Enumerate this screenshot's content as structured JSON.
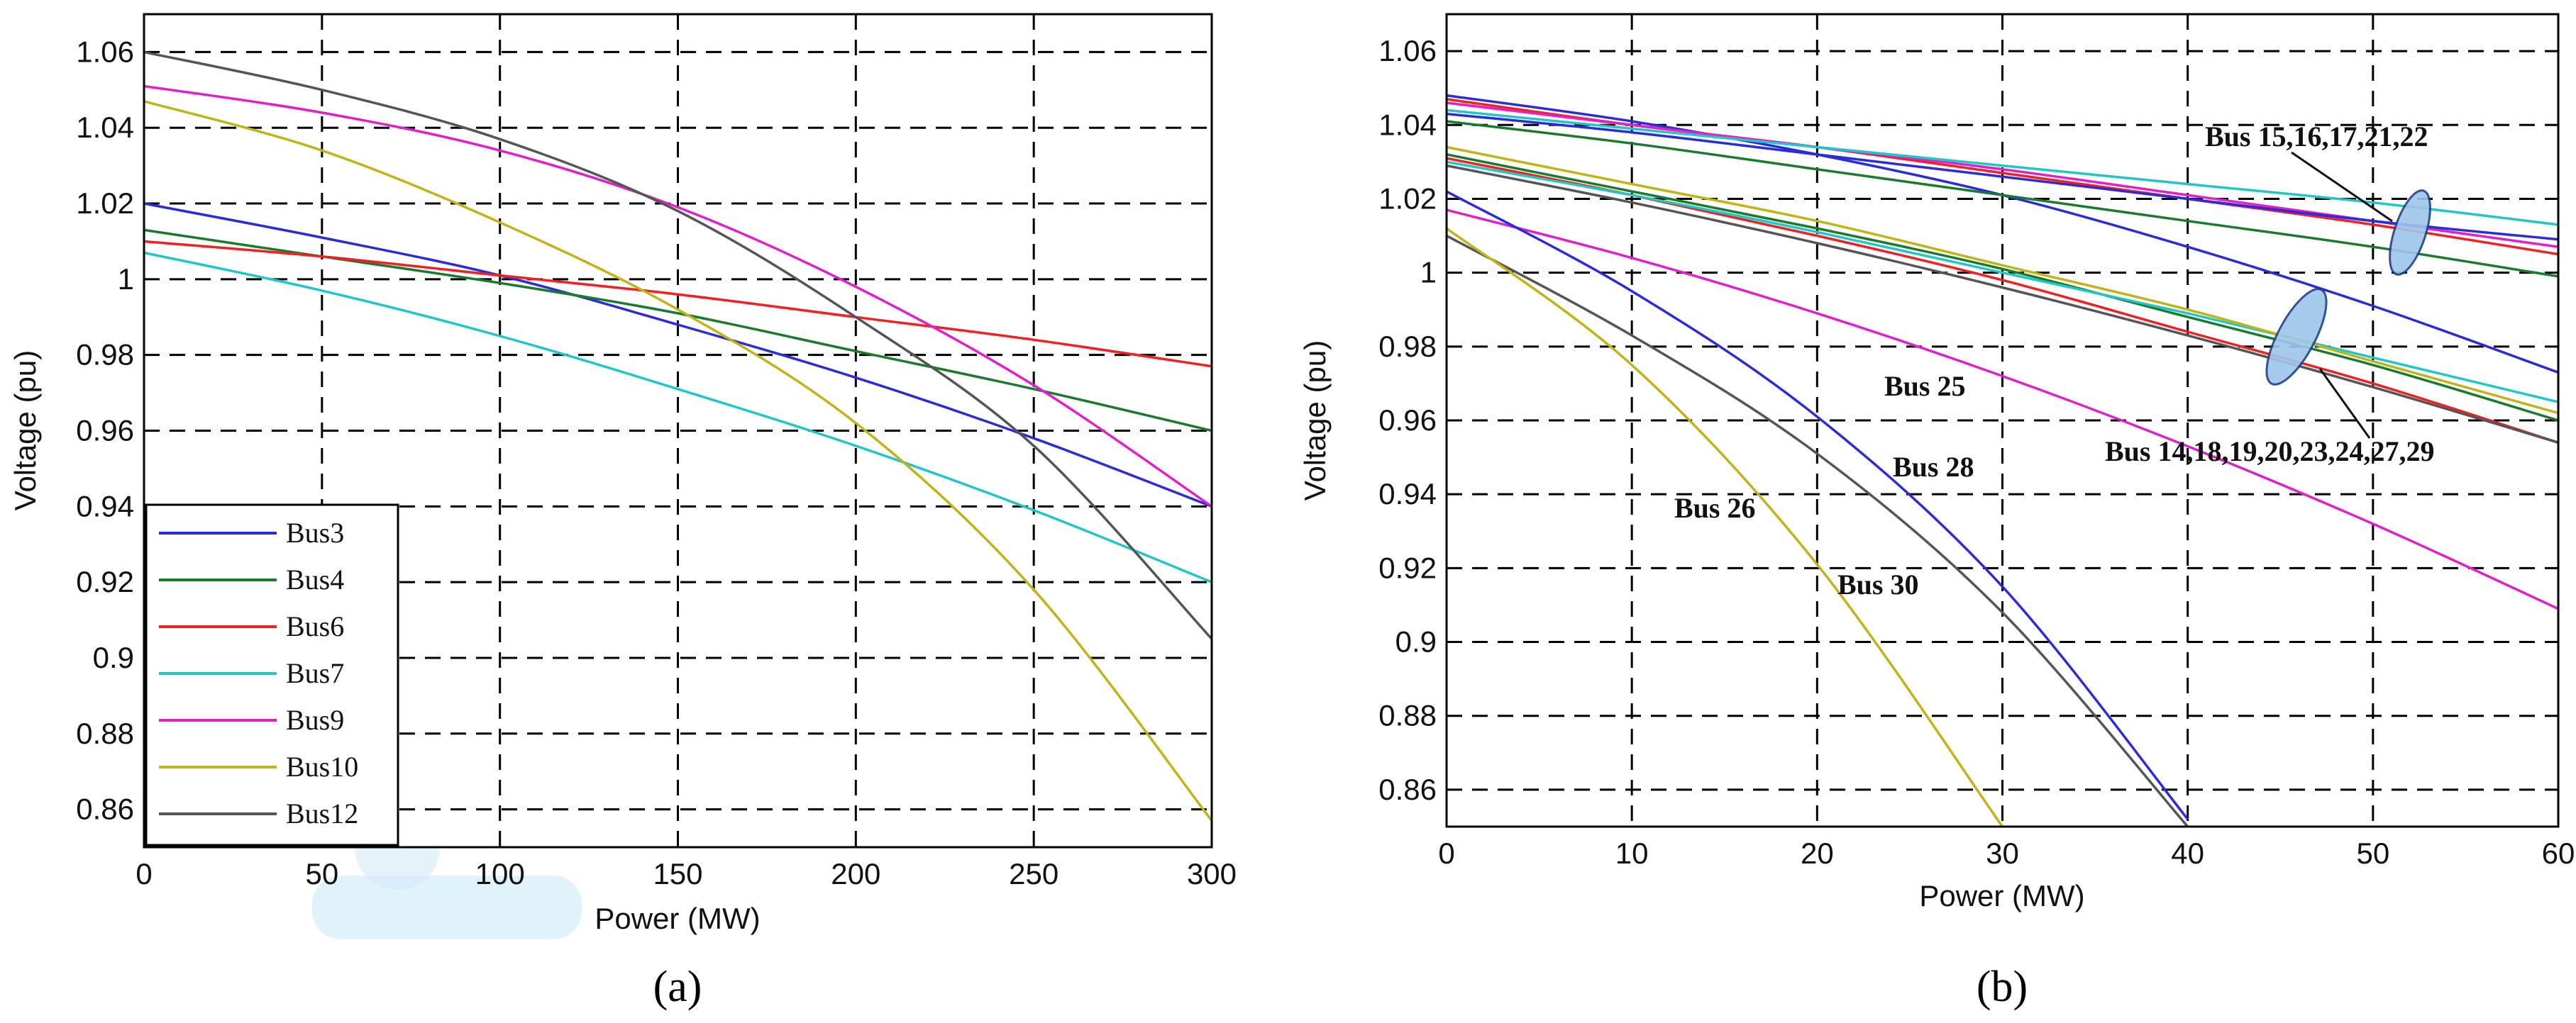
{
  "chart_data": [
    {
      "type": "line",
      "panel_label": "(a)",
      "xlabel": "Power (MW)",
      "ylabel": "Voltage (pu)",
      "xlim": [
        0,
        300
      ],
      "ylim": [
        0.85,
        1.07
      ],
      "xticks": [
        0,
        50,
        100,
        150,
        200,
        250,
        300
      ],
      "yticks": [
        0.86,
        0.88,
        0.9,
        0.92,
        0.94,
        0.96,
        0.98,
        1,
        1.02,
        1.04,
        1.06
      ],
      "ytick_labels": [
        "0.86",
        "0.88",
        "0.9",
        "0.92",
        "0.94",
        "0.96",
        "0.98",
        "1",
        "1.02",
        "1.04",
        "1.06"
      ],
      "grid": true,
      "legend_position": "bottom-left",
      "x": [
        0,
        50,
        100,
        150,
        200,
        250,
        300
      ],
      "series": [
        {
          "name": "Bus3",
          "color": "#2b2bd8",
          "values": [
            1.02,
            1.011,
            1.001,
            0.988,
            0.974,
            0.958,
            0.94
          ]
        },
        {
          "name": "Bus4",
          "color": "#1a7a2e",
          "values": [
            1.013,
            1.006,
            0.999,
            0.991,
            0.981,
            0.971,
            0.96
          ]
        },
        {
          "name": "Bus6",
          "color": "#ee2222",
          "values": [
            1.01,
            1.006,
            1.001,
            0.996,
            0.99,
            0.984,
            0.977
          ]
        },
        {
          "name": "Bus7",
          "color": "#22c6c6",
          "values": [
            1.007,
            0.997,
            0.985,
            0.971,
            0.956,
            0.939,
            0.92
          ]
        },
        {
          "name": "Bus9",
          "color": "#e020c8",
          "values": [
            1.051,
            1.044,
            1.034,
            1.019,
            0.998,
            0.972,
            0.94
          ]
        },
        {
          "name": "Bus10",
          "color": "#c0b418",
          "values": [
            1.047,
            1.034,
            1.015,
            0.992,
            0.962,
            0.918,
            0.857
          ]
        },
        {
          "name": "Bus12",
          "color": "#555555",
          "values": [
            1.06,
            1.05,
            1.037,
            1.018,
            0.99,
            0.956,
            0.905
          ]
        }
      ]
    },
    {
      "type": "line",
      "panel_label": "(b)",
      "xlabel": "Power (MW)",
      "ylabel": "Voltage (pu)",
      "xlim": [
        0,
        60
      ],
      "ylim": [
        0.85,
        1.07
      ],
      "xticks": [
        0,
        10,
        20,
        30,
        40,
        50,
        60
      ],
      "yticks": [
        0.86,
        0.88,
        0.9,
        0.92,
        0.94,
        0.96,
        0.98,
        1,
        1.02,
        1.04,
        1.06
      ],
      "ytick_labels": [
        "0.86",
        "0.88",
        "0.9",
        "0.92",
        "0.94",
        "0.96",
        "0.98",
        "1",
        "1.02",
        "1.04",
        "1.06"
      ],
      "grid": true,
      "annotations": [
        "Bus 15,16,17,21,22",
        "Bus 14,18,19,20,23,24,27,29",
        "Bus 25",
        "Bus 28",
        "Bus 26",
        "Bus 30"
      ],
      "series": [
        {
          "color": "#2b2bd8",
          "x": [
            0,
            10,
            20,
            30,
            40,
            50,
            60
          ],
          "values": [
            1.048,
            1.041,
            1.032,
            1.021,
            1.007,
            0.991,
            0.973
          ]
        },
        {
          "color": "#ee2222",
          "x": [
            0,
            10,
            20,
            30,
            40,
            50,
            60
          ],
          "values": [
            1.047,
            1.04,
            1.034,
            1.027,
            1.02,
            1.013,
            1.005
          ]
        },
        {
          "color": "#e020c8",
          "x": [
            0,
            10,
            20,
            30,
            40,
            50,
            60
          ],
          "values": [
            1.046,
            1.04,
            1.034,
            1.028,
            1.021,
            1.014,
            1.007
          ]
        },
        {
          "color": "#22c6c6",
          "x": [
            0,
            10,
            20,
            30,
            40,
            50,
            60
          ],
          "values": [
            1.044,
            1.039,
            1.034,
            1.029,
            1.024,
            1.019,
            1.013
          ]
        },
        {
          "color": "#2b2bd8",
          "x": [
            0,
            10,
            20,
            30,
            40,
            50,
            60
          ],
          "values": [
            1.043,
            1.038,
            1.032,
            1.026,
            1.02,
            1.014,
            1.009
          ]
        },
        {
          "color": "#1a7a2e",
          "x": [
            0,
            10,
            20,
            30,
            40,
            50,
            60
          ],
          "values": [
            1.041,
            1.035,
            1.028,
            1.021,
            1.014,
            1.007,
            0.999
          ]
        },
        {
          "color": "#ee2222",
          "x": [
            0,
            10,
            20,
            30,
            40,
            50,
            60
          ],
          "values": [
            1.031,
            1.021,
            1.01,
            0.998,
            0.984,
            0.97,
            0.954
          ]
        },
        {
          "color": "#1a7a2e",
          "x": [
            0,
            10,
            20,
            30,
            40,
            50,
            60
          ],
          "values": [
            1.032,
            1.022,
            1.012,
            1.001,
            0.988,
            0.975,
            0.96
          ]
        },
        {
          "color": "#22c6c6",
          "x": [
            0,
            10,
            20,
            30,
            40,
            50,
            60
          ],
          "values": [
            1.03,
            1.021,
            1.011,
            1.0,
            0.989,
            0.977,
            0.965
          ]
        },
        {
          "color": "#c0b418",
          "x": [
            0,
            10,
            20,
            30,
            40,
            50,
            60
          ],
          "values": [
            1.034,
            1.024,
            1.014,
            1.002,
            0.99,
            0.976,
            0.962
          ]
        },
        {
          "color": "#555555",
          "x": [
            0,
            10,
            20,
            30,
            40,
            50,
            60
          ],
          "values": [
            1.029,
            1.019,
            1.008,
            0.996,
            0.983,
            0.969,
            0.954
          ]
        },
        {
          "color": "#e020c8",
          "x": [
            0,
            10,
            20,
            30,
            40,
            50,
            60
          ],
          "values": [
            1.017,
            1.004,
            0.989,
            0.972,
            0.953,
            0.932,
            0.909
          ]
        },
        {
          "color": "#2b2bd8",
          "x": [
            0,
            10,
            20,
            30,
            40
          ],
          "values": [
            1.022,
            0.995,
            0.961,
            0.915,
            0.852
          ]
        },
        {
          "color": "#555555",
          "x": [
            0,
            10,
            20,
            30,
            40
          ],
          "values": [
            1.01,
            0.983,
            0.951,
            0.908,
            0.85
          ]
        },
        {
          "color": "#c0b418",
          "x": [
            0,
            10,
            20,
            30
          ],
          "values": [
            1.012,
            0.975,
            0.921,
            0.85
          ]
        }
      ]
    }
  ]
}
